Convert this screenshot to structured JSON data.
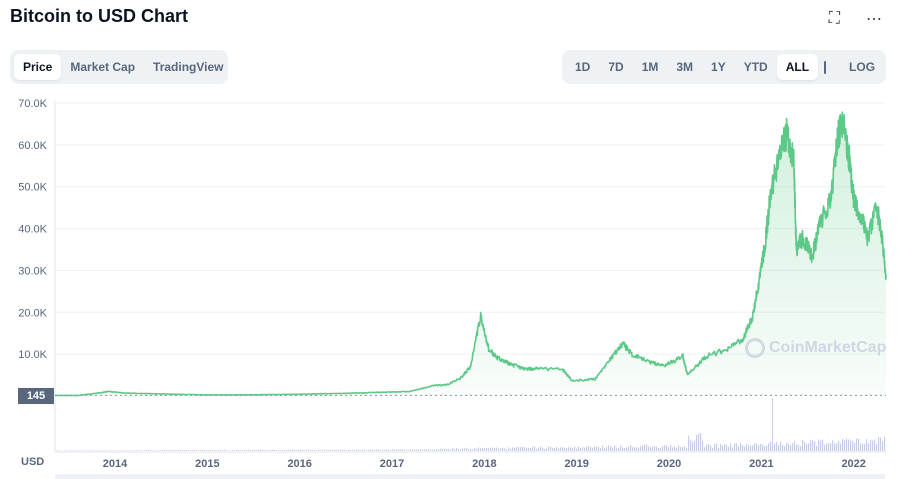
{
  "page": {
    "title": "Bitcoin to USD Chart"
  },
  "header_icons": {
    "fullscreen": "expand-icon",
    "more": "more-icon"
  },
  "tabs": [
    {
      "label": "Price",
      "active": true
    },
    {
      "label": "Market Cap",
      "active": false
    },
    {
      "label": "TradingView",
      "active": false
    }
  ],
  "ranges": [
    {
      "label": "1D",
      "active": false
    },
    {
      "label": "7D",
      "active": false
    },
    {
      "label": "1M",
      "active": false
    },
    {
      "label": "3M",
      "active": false
    },
    {
      "label": "1Y",
      "active": false
    },
    {
      "label": "YTD",
      "active": false
    },
    {
      "label": "ALL",
      "active": true
    }
  ],
  "log_label": "LOG",
  "calendar_icon": "calendar-icon",
  "price_badge": "145",
  "currency_label": "USD",
  "watermark": "CoinMarketCap",
  "colors": {
    "line": "#5dc887",
    "area": "#e6f6ec",
    "volume": "#c8cde8",
    "grid": "#eef1f5"
  },
  "chart_data": {
    "type": "area",
    "title": "",
    "xlabel": "",
    "ylabel": "",
    "ylim": [
      0,
      70000
    ],
    "yticks": [
      "70.0K",
      "60.0K",
      "50.0K",
      "40.0K",
      "30.0K",
      "20.0K",
      "10.0K"
    ],
    "ytick_values": [
      70000,
      60000,
      50000,
      40000,
      30000,
      20000,
      10000
    ],
    "xticks": [
      "2014",
      "2015",
      "2016",
      "2017",
      "2018",
      "2019",
      "2020",
      "2021",
      "2022"
    ],
    "xtick_values": [
      2014,
      2015,
      2016,
      2017,
      2018,
      2019,
      2020,
      2021,
      2022
    ],
    "xlim": [
      2013.35,
      2022.35
    ],
    "series": [
      {
        "x": [
          2013.35,
          2013.6,
          2013.85,
          2013.93,
          2014.1,
          2014.5,
          2015.0,
          2015.5,
          2016.0,
          2016.5,
          2016.9,
          2017.2,
          2017.45,
          2017.6,
          2017.75,
          2017.85,
          2017.96,
          2018.05,
          2018.15,
          2018.3,
          2018.45,
          2018.6,
          2018.85,
          2018.95,
          2019.2,
          2019.35,
          2019.5,
          2019.6,
          2019.8,
          2019.95,
          2020.15,
          2020.2,
          2020.4,
          2020.6,
          2020.8,
          2020.9,
          2020.99,
          2021.05,
          2021.1,
          2021.2,
          2021.28,
          2021.35,
          2021.38,
          2021.45,
          2021.55,
          2021.62,
          2021.75,
          2021.83,
          2021.88,
          2021.95,
          2022.0,
          2022.08,
          2022.15,
          2022.25,
          2022.3,
          2022.35
        ],
        "y": [
          145,
          130,
          800,
          1100,
          700,
          500,
          250,
          280,
          430,
          650,
          900,
          1100,
          2500,
          2700,
          4400,
          7000,
          19000,
          11000,
          9000,
          7500,
          6400,
          6600,
          6300,
          3700,
          4000,
          8500,
          12500,
          10000,
          8000,
          7200,
          9500,
          5000,
          9400,
          11000,
          13500,
          18500,
          29000,
          38000,
          48000,
          58000,
          63000,
          56000,
          35000,
          38000,
          33000,
          40000,
          47000,
          62000,
          66000,
          57000,
          47000,
          43000,
          38000,
          45000,
          39000,
          29000
        ]
      }
    ],
    "reference_line": 145
  }
}
